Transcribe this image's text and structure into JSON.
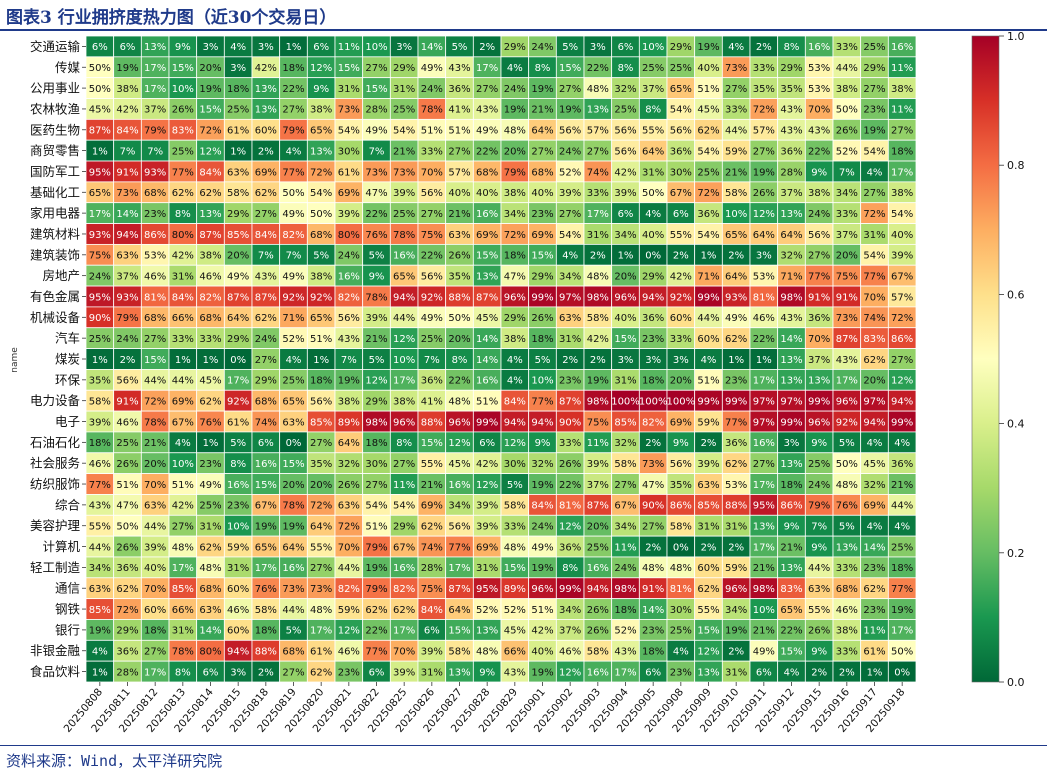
{
  "header": {
    "title": "图表3 行业拥挤度热力图（近30个交易日）"
  },
  "footer": {
    "source": "资料来源：Wind，太平洋研究院"
  },
  "chart_data": {
    "type": "heatmap",
    "ylabel": "name",
    "colorbar": {
      "range": [
        0.0,
        1.0
      ],
      "ticks": [
        "0.0",
        "0.2",
        "0.4",
        "0.6",
        "0.8",
        "1.0"
      ],
      "colormap": "RdYlGn_r"
    },
    "columns": [
      "20250808",
      "20250811",
      "20250812",
      "20250813",
      "20250814",
      "20250815",
      "20250818",
      "20250819",
      "20250820",
      "20250821",
      "20250822",
      "20250825",
      "20250826",
      "20250827",
      "20250828",
      "20250829",
      "20250901",
      "20250902",
      "20250903",
      "20250904",
      "20250905",
      "20250908",
      "20250909",
      "20250910",
      "20250911",
      "20250912",
      "20250915",
      "20250916",
      "20250917",
      "20250918"
    ],
    "rows": [
      "交通运输",
      "传媒",
      "公用事业",
      "农林牧渔",
      "医药生物",
      "商贸零售",
      "国防军工",
      "基础化工",
      "家用电器",
      "建筑材料",
      "建筑装饰",
      "房地产",
      "有色金属",
      "机械设备",
      "汽车",
      "煤炭",
      "环保",
      "电力设备",
      "电子",
      "石油石化",
      "社会服务",
      "纺织服饰",
      "综合",
      "美容护理",
      "计算机",
      "轻工制造",
      "通信",
      "钢铁",
      "银行",
      "非银金融",
      "食品饮料"
    ],
    "values": [
      [
        6,
        6,
        13,
        9,
        3,
        4,
        3,
        1,
        6,
        11,
        10,
        3,
        14,
        5,
        2,
        29,
        24,
        5,
        3,
        6,
        10,
        29,
        19,
        4,
        2,
        8,
        16,
        33,
        25,
        16
      ],
      [
        50,
        19,
        17,
        15,
        20,
        3,
        42,
        18,
        12,
        15,
        27,
        29,
        49,
        43,
        17,
        4,
        8,
        15,
        22,
        8,
        25,
        25,
        40,
        73,
        33,
        29,
        53,
        44,
        29,
        11
      ],
      [
        50,
        38,
        17,
        10,
        19,
        18,
        13,
        22,
        9,
        31,
        15,
        31,
        24,
        36,
        27,
        24,
        19,
        27,
        48,
        32,
        37,
        65,
        51,
        27,
        35,
        35,
        53,
        38,
        27,
        38
      ],
      [
        45,
        42,
        37,
        26,
        15,
        25,
        13,
        27,
        38,
        73,
        28,
        25,
        78,
        41,
        43,
        19,
        21,
        19,
        13,
        25,
        8,
        54,
        45,
        33,
        72,
        43,
        70,
        50,
        23,
        11
      ],
      [
        87,
        84,
        79,
        83,
        72,
        61,
        60,
        79,
        65,
        54,
        49,
        54,
        51,
        51,
        49,
        48,
        64,
        56,
        57,
        56,
        55,
        56,
        62,
        44,
        57,
        43,
        43,
        26,
        19,
        27
      ],
      [
        1,
        7,
        7,
        25,
        12,
        1,
        2,
        4,
        13,
        30,
        7,
        21,
        33,
        27,
        22,
        20,
        27,
        24,
        27,
        56,
        64,
        36,
        54,
        59,
        27,
        36,
        22,
        52,
        54,
        18
      ],
      [
        95,
        91,
        93,
        77,
        84,
        63,
        69,
        77,
        72,
        61,
        73,
        73,
        70,
        57,
        68,
        79,
        68,
        52,
        74,
        42,
        31,
        30,
        25,
        21,
        19,
        28,
        9,
        7,
        4,
        17
      ],
      [
        65,
        73,
        68,
        62,
        62,
        58,
        62,
        50,
        54,
        69,
        47,
        39,
        56,
        40,
        40,
        38,
        40,
        39,
        33,
        39,
        50,
        67,
        72,
        58,
        26,
        37,
        38,
        34,
        27,
        38
      ],
      [
        17,
        14,
        23,
        8,
        13,
        29,
        27,
        49,
        50,
        39,
        22,
        25,
        27,
        21,
        16,
        34,
        23,
        27,
        17,
        6,
        4,
        6,
        36,
        10,
        12,
        13,
        24,
        33,
        72,
        54
      ],
      [
        93,
        94,
        86,
        80,
        87,
        85,
        84,
        82,
        68,
        80,
        76,
        78,
        75,
        63,
        69,
        72,
        69,
        54,
        31,
        34,
        40,
        55,
        54,
        65,
        64,
        64,
        56,
        37,
        31,
        40
      ],
      [
        75,
        63,
        53,
        42,
        38,
        20,
        7,
        7,
        5,
        24,
        5,
        16,
        22,
        26,
        15,
        18,
        15,
        4,
        2,
        1,
        0,
        2,
        1,
        2,
        3,
        32,
        27,
        20,
        54,
        39
      ],
      [
        24,
        37,
        46,
        31,
        46,
        49,
        43,
        49,
        38,
        16,
        9,
        65,
        56,
        35,
        13,
        47,
        29,
        34,
        48,
        20,
        29,
        42,
        71,
        64,
        53,
        71,
        77,
        75,
        77,
        67
      ],
      [
        95,
        93,
        81,
        84,
        82,
        87,
        87,
        92,
        92,
        82,
        78,
        94,
        92,
        88,
        87,
        96,
        99,
        97,
        98,
        96,
        94,
        92,
        99,
        93,
        81,
        98,
        91,
        91,
        70,
        57
      ],
      [
        90,
        79,
        68,
        66,
        68,
        64,
        62,
        71,
        65,
        56,
        39,
        44,
        49,
        50,
        45,
        29,
        26,
        63,
        58,
        40,
        36,
        60,
        44,
        49,
        46,
        43,
        36,
        73,
        74,
        72
      ],
      [
        25,
        24,
        27,
        33,
        33,
        29,
        24,
        52,
        51,
        43,
        21,
        12,
        25,
        20,
        14,
        38,
        18,
        31,
        42,
        15,
        23,
        33,
        60,
        62,
        22,
        14,
        70,
        87,
        83,
        86
      ],
      [
        1,
        2,
        15,
        1,
        1,
        0,
        27,
        4,
        1,
        7,
        5,
        10,
        7,
        8,
        14,
        4,
        5,
        2,
        2,
        3,
        3,
        3,
        4,
        1,
        1,
        13,
        37,
        43,
        62,
        27
      ],
      [
        35,
        56,
        44,
        44,
        45,
        17,
        29,
        25,
        18,
        19,
        12,
        17,
        36,
        22,
        16,
        4,
        10,
        23,
        19,
        31,
        18,
        20,
        51,
        23,
        17,
        13,
        13,
        17,
        20,
        12
      ],
      [
        58,
        91,
        72,
        69,
        62,
        92,
        68,
        65,
        56,
        38,
        29,
        38,
        41,
        48,
        51,
        84,
        77,
        87,
        98,
        100,
        100,
        100,
        99,
        99,
        97,
        97,
        99,
        96,
        97,
        94
      ],
      [
        39,
        46,
        78,
        67,
        76,
        61,
        74,
        63,
        85,
        89,
        98,
        96,
        88,
        96,
        99,
        94,
        94,
        90,
        75,
        85,
        82,
        69,
        59,
        77,
        97,
        99,
        96,
        92,
        94,
        99
      ],
      [
        18,
        25,
        21,
        4,
        1,
        5,
        6,
        0,
        27,
        64,
        18,
        8,
        15,
        12,
        6,
        12,
        9,
        33,
        11,
        32,
        2,
        9,
        2,
        36,
        16,
        3,
        9,
        5,
        4,
        4
      ],
      [
        46,
        26,
        20,
        10,
        23,
        8,
        16,
        15,
        35,
        32,
        30,
        27,
        55,
        45,
        42,
        30,
        32,
        26,
        39,
        58,
        73,
        56,
        39,
        62,
        27,
        13,
        25,
        50,
        45,
        36
      ],
      [
        77,
        51,
        70,
        51,
        49,
        16,
        15,
        20,
        20,
        26,
        27,
        11,
        21,
        16,
        12,
        5,
        19,
        22,
        37,
        27,
        47,
        35,
        63,
        53,
        17,
        18,
        24,
        48,
        32,
        21
      ],
      [
        43,
        47,
        63,
        42,
        25,
        23,
        67,
        78,
        72,
        63,
        54,
        54,
        69,
        34,
        39,
        58,
        84,
        81,
        87,
        67,
        90,
        86,
        85,
        88,
        95,
        86,
        79,
        76,
        69,
        44
      ],
      [
        55,
        50,
        44,
        27,
        31,
        10,
        19,
        19,
        64,
        72,
        51,
        29,
        62,
        56,
        39,
        33,
        24,
        12,
        20,
        34,
        27,
        58,
        31,
        31,
        13,
        9,
        7,
        5,
        4,
        4
      ],
      [
        44,
        26,
        39,
        48,
        62,
        59,
        65,
        64,
        55,
        70,
        79,
        67,
        74,
        77,
        69,
        48,
        49,
        36,
        25,
        11,
        2,
        0,
        2,
        2,
        17,
        21,
        9,
        13,
        14,
        25
      ],
      [
        34,
        36,
        40,
        17,
        48,
        31,
        17,
        16,
        27,
        44,
        19,
        16,
        28,
        17,
        31,
        15,
        19,
        8,
        16,
        24,
        48,
        48,
        60,
        59,
        21,
        13,
        44,
        33,
        23,
        18
      ],
      [
        63,
        62,
        70,
        85,
        68,
        60,
        76,
        73,
        73,
        82,
        79,
        82,
        75,
        87,
        95,
        89,
        96,
        99,
        94,
        98,
        91,
        81,
        62,
        96,
        98,
        83,
        63,
        68,
        62,
        77
      ],
      [
        85,
        72,
        60,
        66,
        63,
        46,
        58,
        44,
        48,
        59,
        62,
        62,
        84,
        64,
        52,
        52,
        51,
        34,
        26,
        18,
        14,
        30,
        55,
        34,
        10,
        65,
        55,
        46,
        23,
        19
      ],
      [
        19,
        29,
        18,
        31,
        14,
        60,
        18,
        5,
        17,
        12,
        22,
        17,
        6,
        15,
        13,
        45,
        42,
        37,
        26,
        52,
        23,
        25,
        15,
        19,
        21,
        22,
        26,
        38,
        11,
        17
      ],
      [
        4,
        36,
        27,
        78,
        80,
        94,
        88,
        68,
        61,
        46,
        77,
        70,
        39,
        58,
        48,
        66,
        40,
        46,
        58,
        43,
        18,
        4,
        12,
        2,
        49,
        15,
        9,
        33,
        61,
        50
      ],
      [
        1,
        28,
        17,
        8,
        6,
        3,
        2,
        27,
        62,
        23,
        6,
        39,
        31,
        13,
        9,
        43,
        19,
        12,
        16,
        17,
        6,
        23,
        13,
        31,
        6,
        4,
        2,
        2,
        1,
        0
      ]
    ]
  }
}
